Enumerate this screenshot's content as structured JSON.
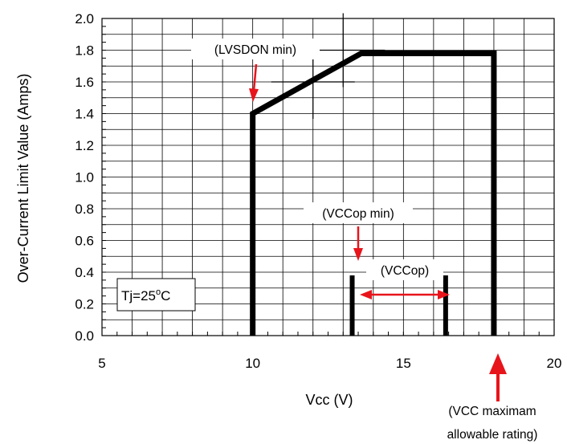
{
  "chart_data": {
    "type": "line",
    "xlabel": "Vcc (V)",
    "ylabel": "Over-Current Limit Value (Amps)",
    "xlim": [
      5,
      20
    ],
    "ylim": [
      0.0,
      2.0
    ],
    "x_ticks": [
      "5",
      "10",
      "15",
      "20"
    ],
    "y_ticks": [
      "0.0",
      "0.2",
      "0.4",
      "0.6",
      "0.8",
      "1.0",
      "1.2",
      "1.4",
      "1.6",
      "1.8",
      "2.0"
    ],
    "grid": true,
    "series": [
      {
        "x": [
          10,
          10,
          13.6,
          18,
          18
        ],
        "y": [
          0.0,
          1.4,
          1.78,
          1.78,
          0.0
        ]
      }
    ],
    "markers": [
      {
        "x": 13.3,
        "y_from": 0.0,
        "y_to": 0.38
      },
      {
        "x": 16.4,
        "y_from": 0.0,
        "y_to": 0.38
      }
    ],
    "crosshairs": [
      {
        "x": 12.0,
        "y": 1.6
      },
      {
        "x": 13.0,
        "y": 1.8
      }
    ],
    "annotations": {
      "lvsdon": "(LVSDON min)",
      "vccop_min": "(VCCop min)",
      "vccop": "(VCCop)",
      "tj": "Tj=25",
      "tj_sup": "o",
      "tj_unit": "C",
      "vcc_max_line1": "(VCC maximam",
      "vcc_max_line2": "allowable rating)"
    },
    "colors": {
      "curve": "#000000",
      "arrow": "#e8141b",
      "grid": "#000000"
    }
  }
}
